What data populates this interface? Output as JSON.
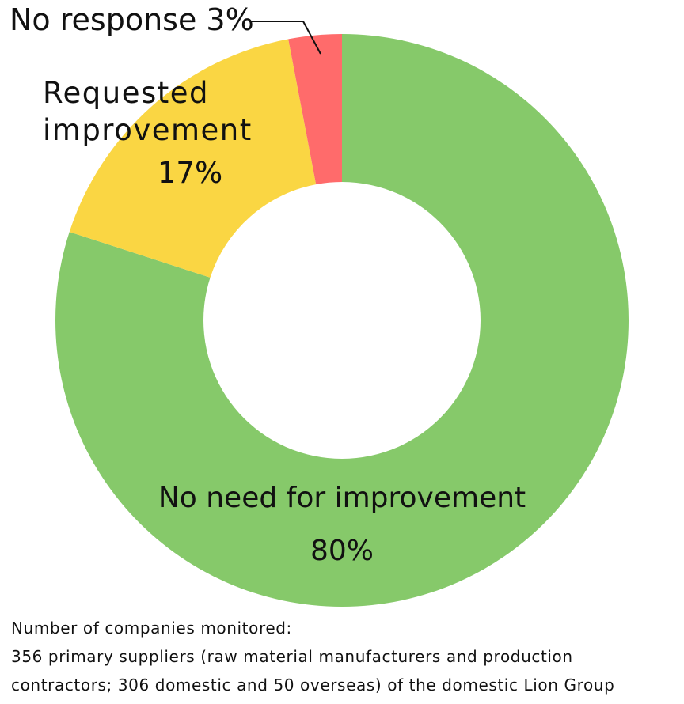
{
  "chart_data": {
    "type": "pie",
    "style": "donut",
    "title": "",
    "slices": [
      {
        "name": "No need for improvement",
        "value": 80,
        "value_label": "80%",
        "color": "#86C96A"
      },
      {
        "name": "Requested improvement",
        "name_lines": [
          "Requested",
          "improvement"
        ],
        "value": 17,
        "value_label": "17%",
        "color": "#FAD643"
      },
      {
        "name": "No response",
        "value": 3,
        "value_label": "3%",
        "label": "No response 3%",
        "color": "#FF6B6B"
      }
    ],
    "start_angle": "12 o'clock",
    "direction": "clockwise"
  },
  "notes": [
    "Number of companies monitored:",
    "356 primary suppliers (raw material manufacturers and production",
    "contractors; 306 domestic and 50 overseas) of the domestic Lion Group"
  ]
}
